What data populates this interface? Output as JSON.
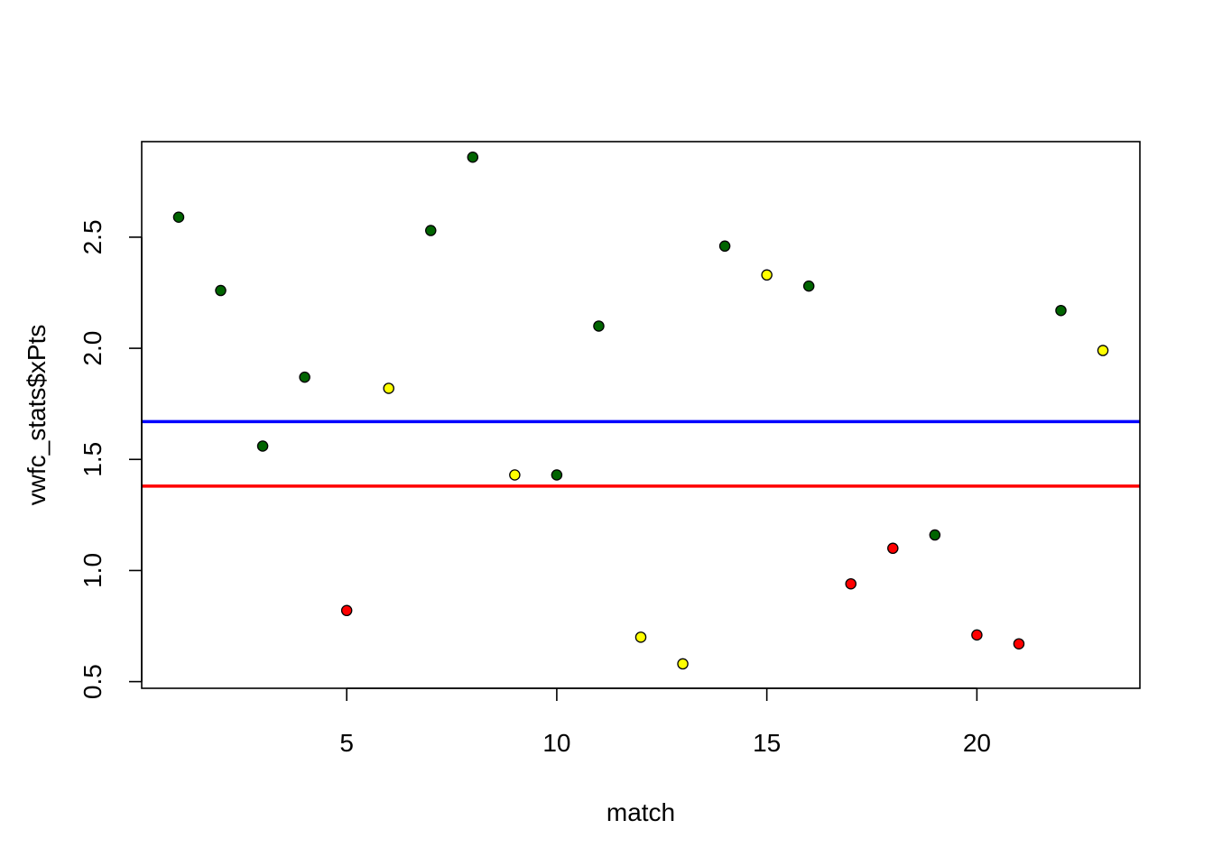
{
  "chart_data": {
    "type": "scatter",
    "title": "",
    "xlabel": "match",
    "ylabel": "vwfc_stats$xPts",
    "xlim": [
      0.12,
      23.88
    ],
    "ylim": [
      0.47,
      2.93
    ],
    "x_ticks": [
      5,
      10,
      15,
      20
    ],
    "x_tick_labels": [
      "5",
      "10",
      "15",
      "20"
    ],
    "y_ticks": [
      0.5,
      1.0,
      1.5,
      2.0,
      2.5
    ],
    "y_tick_labels": [
      "0.5",
      "1.0",
      "1.5",
      "2.0",
      "2.5"
    ],
    "grid": false,
    "legend": "none",
    "points": [
      {
        "x": 1,
        "y": 2.59,
        "color": "#006400"
      },
      {
        "x": 2,
        "y": 2.26,
        "color": "#006400"
      },
      {
        "x": 3,
        "y": 1.56,
        "color": "#006400"
      },
      {
        "x": 4,
        "y": 1.87,
        "color": "#006400"
      },
      {
        "x": 5,
        "y": 0.82,
        "color": "#ff0000"
      },
      {
        "x": 6,
        "y": 1.82,
        "color": "#ffff00"
      },
      {
        "x": 7,
        "y": 2.53,
        "color": "#006400"
      },
      {
        "x": 8,
        "y": 2.86,
        "color": "#006400"
      },
      {
        "x": 9,
        "y": 1.43,
        "color": "#ffff00"
      },
      {
        "x": 10,
        "y": 1.43,
        "color": "#006400"
      },
      {
        "x": 11,
        "y": 2.1,
        "color": "#006400"
      },
      {
        "x": 12,
        "y": 0.7,
        "color": "#ffff00"
      },
      {
        "x": 13,
        "y": 0.58,
        "color": "#ffff00"
      },
      {
        "x": 14,
        "y": 2.46,
        "color": "#006400"
      },
      {
        "x": 15,
        "y": 2.33,
        "color": "#ffff00"
      },
      {
        "x": 16,
        "y": 2.28,
        "color": "#006400"
      },
      {
        "x": 17,
        "y": 0.94,
        "color": "#ff0000"
      },
      {
        "x": 18,
        "y": 1.1,
        "color": "#ff0000"
      },
      {
        "x": 19,
        "y": 1.16,
        "color": "#006400"
      },
      {
        "x": 20,
        "y": 0.71,
        "color": "#ff0000"
      },
      {
        "x": 21,
        "y": 0.67,
        "color": "#ff0000"
      },
      {
        "x": 22,
        "y": 2.17,
        "color": "#006400"
      },
      {
        "x": 23,
        "y": 1.99,
        "color": "#ffff00"
      }
    ],
    "hlines": [
      {
        "y": 1.67,
        "color": "#0000ff"
      },
      {
        "y": 1.38,
        "color": "#ff0000"
      }
    ]
  }
}
